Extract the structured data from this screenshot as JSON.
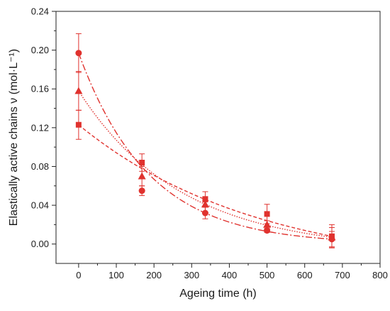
{
  "chart_data": {
    "type": "scatter",
    "title": "",
    "xlabel": "Ageing time (h)",
    "ylabel": "Elastically active chains ν (mol·L⁻¹)",
    "xlim": [
      -60,
      800
    ],
    "ylim": [
      -0.02,
      0.24
    ],
    "xticks": [
      0,
      100,
      200,
      300,
      400,
      500,
      600,
      700,
      800
    ],
    "yticks": [
      0.0,
      0.04,
      0.08,
      0.12,
      0.16,
      0.2,
      0.24
    ],
    "ytick_labels": [
      "0.00",
      "0.04",
      "0.08",
      "0.12",
      "0.16",
      "0.20",
      "0.24"
    ],
    "grid": false,
    "color": "#e0322e",
    "series": [
      {
        "marker": "circle",
        "line_style": "dash-dot",
        "x": [
          0,
          168,
          336,
          500,
          672
        ],
        "y": [
          0.197,
          0.055,
          0.032,
          0.014,
          0.005
        ],
        "err": [
          0.02,
          0.005,
          0.006,
          0.002,
          0.008
        ]
      },
      {
        "marker": "triangle",
        "line_style": "dotted",
        "x": [
          0,
          168,
          336,
          500,
          672
        ],
        "y": [
          0.158,
          0.07,
          0.041,
          0.02,
          0.007
        ],
        "err": [
          0.02,
          0.01,
          0.008,
          0.004,
          0.01
        ]
      },
      {
        "marker": "square",
        "line_style": "dashed",
        "x": [
          0,
          168,
          336,
          500,
          672
        ],
        "y": [
          0.123,
          0.084,
          0.046,
          0.031,
          0.008
        ],
        "err": [
          0.015,
          0.009,
          0.008,
          0.01,
          0.012
        ]
      }
    ]
  }
}
